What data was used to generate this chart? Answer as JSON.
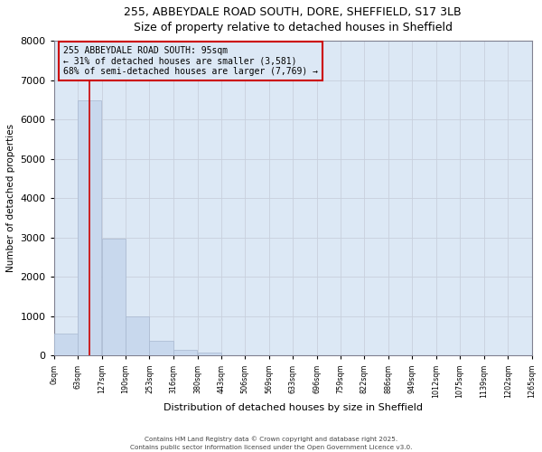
{
  "title_line1": "255, ABBEYDALE ROAD SOUTH, DORE, SHEFFIELD, S17 3LB",
  "title_line2": "Size of property relative to detached houses in Sheffield",
  "xlabel": "Distribution of detached houses by size in Sheffield",
  "ylabel": "Number of detached properties",
  "bar_values": [
    570,
    6480,
    2980,
    990,
    370,
    150,
    90,
    0,
    0,
    0,
    0,
    0,
    0,
    0,
    0,
    0,
    0,
    0,
    0,
    0
  ],
  "bin_edges": [
    0,
    63,
    127,
    190,
    253,
    316,
    380,
    443,
    506,
    569,
    633,
    696,
    759,
    822,
    886,
    949,
    1012,
    1075,
    1139,
    1202,
    1265
  ],
  "x_tick_labels": [
    "0sqm",
    "63sqm",
    "127sqm",
    "190sqm",
    "253sqm",
    "316sqm",
    "380sqm",
    "443sqm",
    "506sqm",
    "569sqm",
    "633sqm",
    "696sqm",
    "759sqm",
    "822sqm",
    "886sqm",
    "949sqm",
    "1012sqm",
    "1075sqm",
    "1139sqm",
    "1202sqm",
    "1265sqm"
  ],
  "bar_color": "#c8d8ed",
  "bar_edge_color": "#a8b8d0",
  "grid_color": "#c8d0dc",
  "background_color": "#ffffff",
  "plot_bg_color": "#dce8f5",
  "property_line_x": 95,
  "property_line_color": "#cc0000",
  "annotation_text": "255 ABBEYDALE ROAD SOUTH: 95sqm\n← 31% of detached houses are smaller (3,581)\n68% of semi-detached houses are larger (7,769) →",
  "annotation_box_color": "#cc0000",
  "ylim": [
    0,
    8000
  ],
  "yticks": [
    0,
    1000,
    2000,
    3000,
    4000,
    5000,
    6000,
    7000,
    8000
  ],
  "footer_line1": "Contains HM Land Registry data © Crown copyright and database right 2025.",
  "footer_line2": "Contains public sector information licensed under the Open Government Licence v3.0."
}
